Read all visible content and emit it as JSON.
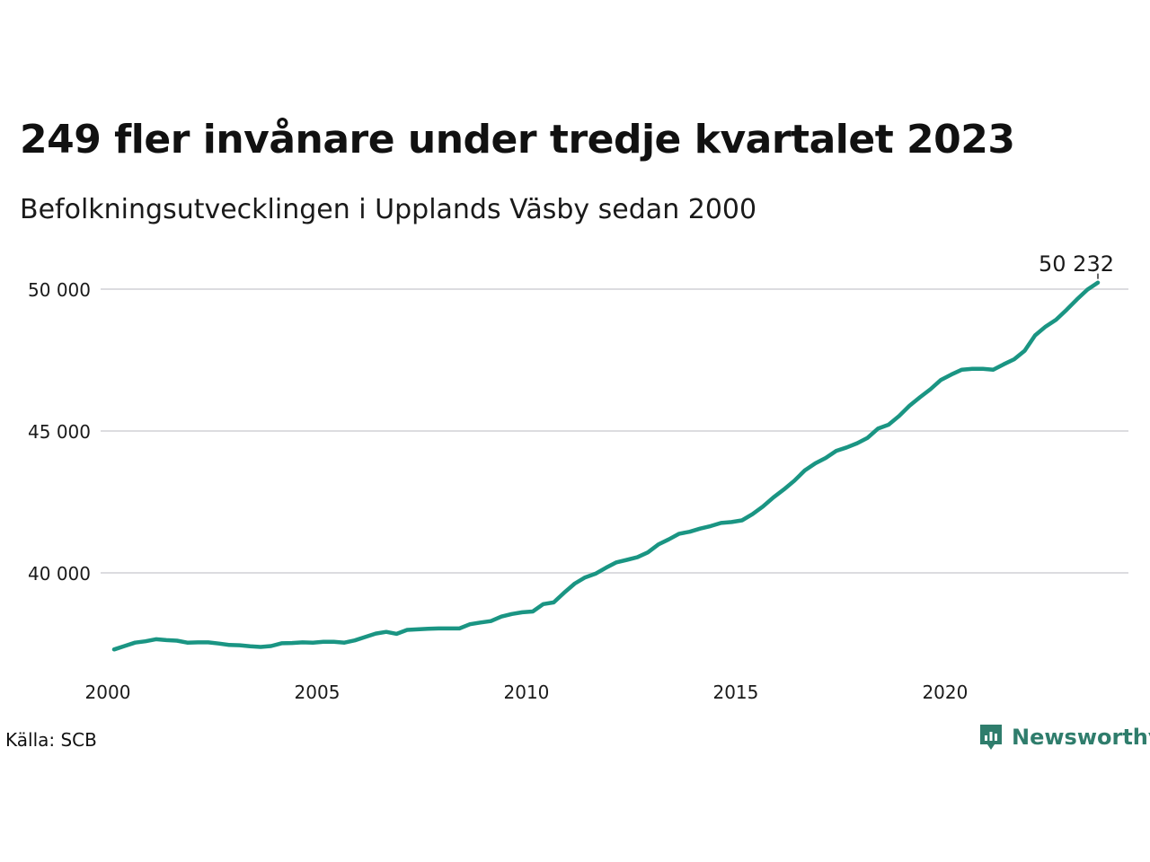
{
  "title": "249 fler invånare under tredje kvartalet 2023",
  "subtitle": "Befolkningsutvecklingen i Upplands Väsby sedan 2000",
  "source": "Källa: SCB",
  "brand": {
    "name": "Newsworthy",
    "icon": "newsworthy-logo-icon",
    "color": "#2f7d6c"
  },
  "chart_data": {
    "type": "line",
    "title": "249 fler invånare under tredje kvartalet 2023",
    "subtitle": "Befolkningsutvecklingen i Upplands Väsby sedan 2000",
    "xlabel": "",
    "ylabel": "",
    "xlim": [
      2000,
      2024.5
    ],
    "ylim": [
      36700,
      50500
    ],
    "x_ticks": [
      2000,
      2005,
      2010,
      2015,
      2020
    ],
    "x_tick_labels": [
      "2000",
      "2005",
      "2010",
      "2015",
      "2020"
    ],
    "y_ticks": [
      40000,
      45000,
      50000
    ],
    "y_tick_labels": [
      "40 000",
      "45 000",
      "50 000"
    ],
    "grid": "horizontal",
    "line_color": "#1a9583",
    "end_label": "50 232",
    "series": [
      {
        "x": [
          2000.0,
          2000.25,
          2000.5,
          2000.75,
          2001.0,
          2001.25,
          2001.5,
          2001.75,
          2002.0,
          2002.25,
          2002.5,
          2002.75,
          2003.0,
          2003.25,
          2003.5,
          2003.75,
          2004.0,
          2004.25,
          2004.5,
          2004.75,
          2005.0,
          2005.25,
          2005.5,
          2005.75,
          2006.0,
          2006.25,
          2006.5,
          2006.75,
          2007.0,
          2007.25,
          2007.5,
          2007.75,
          2008.0,
          2008.25,
          2008.5,
          2008.75,
          2009.0,
          2009.25,
          2009.5,
          2009.75,
          2010.0,
          2010.25,
          2010.5,
          2010.75,
          2011.0,
          2011.25,
          2011.5,
          2011.75,
          2012.0,
          2012.25,
          2012.5,
          2012.75,
          2013.0,
          2013.25,
          2013.5,
          2013.75,
          2014.0,
          2014.25,
          2014.5,
          2014.75,
          2015.0,
          2015.25,
          2015.5,
          2015.75,
          2016.0,
          2016.25,
          2016.5,
          2016.75,
          2017.0,
          2017.25,
          2017.5,
          2017.75,
          2018.0,
          2018.25,
          2018.5,
          2018.75,
          2019.0,
          2019.25,
          2019.5,
          2019.75,
          2020.0,
          2020.25,
          2020.5,
          2020.75,
          2021.0,
          2021.25,
          2021.5,
          2021.75,
          2022.0,
          2022.25,
          2022.5,
          2022.75,
          2023.0,
          2023.25,
          2023.5
        ],
        "y": [
          37300,
          37420,
          37540,
          37590,
          37660,
          37630,
          37610,
          37540,
          37550,
          37550,
          37510,
          37460,
          37450,
          37410,
          37390,
          37420,
          37520,
          37530,
          37550,
          37540,
          37570,
          37570,
          37540,
          37620,
          37740,
          37860,
          37920,
          37850,
          37990,
          38010,
          38030,
          38040,
          38040,
          38040,
          38190,
          38250,
          38300,
          38460,
          38550,
          38610,
          38640,
          38900,
          38960,
          39300,
          39620,
          39840,
          39970,
          40180,
          40370,
          40460,
          40550,
          40720,
          41000,
          41180,
          41380,
          41450,
          41560,
          41650,
          41760,
          41790,
          41850,
          42070,
          42340,
          42660,
          42940,
          43250,
          43610,
          43860,
          44050,
          44300,
          44420,
          44570,
          44760,
          45090,
          45220,
          45530,
          45890,
          46190,
          46470,
          46800,
          46990,
          47160,
          47190,
          47190,
          47160,
          47350,
          47530,
          47830,
          48370,
          48680,
          48920,
          49270,
          49640,
          49983,
          50232
        ]
      }
    ]
  }
}
